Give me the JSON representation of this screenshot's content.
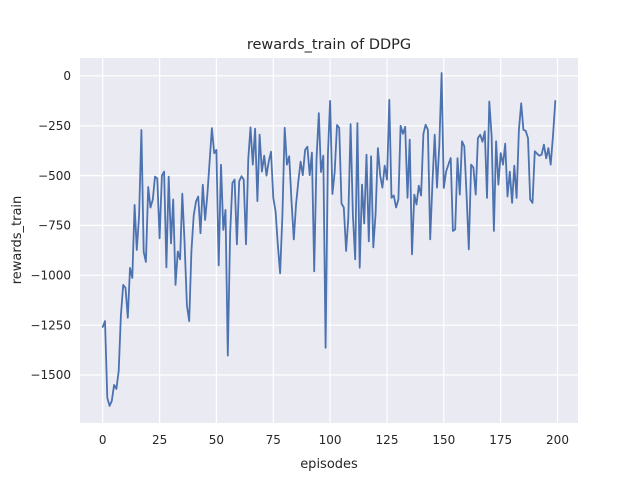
{
  "chart_data": {
    "type": "line",
    "title": "rewards_train of DDPG",
    "xlabel": "episodes",
    "ylabel": "rewards_train",
    "x_ticks": [
      0,
      25,
      50,
      75,
      100,
      125,
      150,
      175,
      200
    ],
    "x_tick_labels": [
      "0",
      "25",
      "50",
      "75",
      "100",
      "125",
      "150",
      "175",
      "200"
    ],
    "y_ticks": [
      0,
      -250,
      -500,
      -750,
      -1000,
      -1250,
      -1500
    ],
    "y_tick_labels": [
      "0",
      "−250",
      "−500",
      "−750",
      "−1000",
      "−1250",
      "−1500"
    ],
    "xlim": [
      -10,
      209
    ],
    "ylim": [
      -1741,
      90
    ],
    "grid": true,
    "legend": false,
    "style": "seaborn-darkgrid",
    "colors": {
      "line": "#4c72b0",
      "axes_background": "#eaeaf2",
      "gridline": "#ffffff",
      "text": "#262626",
      "figure_background": "#ffffff"
    },
    "series": [
      {
        "name": "rewards_train",
        "x_start": 0,
        "x_step": 1,
        "values": [
          -1259,
          -1230,
          -1615,
          -1655,
          -1630,
          -1550,
          -1570,
          -1480,
          -1200,
          -1048,
          -1063,
          -1213,
          -963,
          -1013,
          -647,
          -873,
          -700,
          -271,
          -883,
          -933,
          -557,
          -660,
          -620,
          -505,
          -515,
          -815,
          -500,
          -480,
          -960,
          -505,
          -840,
          -620,
          -1048,
          -880,
          -920,
          -590,
          -840,
          -1150,
          -1230,
          -880,
          -700,
          -630,
          -605,
          -789,
          -546,
          -722,
          -600,
          -430,
          -262,
          -388,
          -371,
          -950,
          -446,
          -772,
          -672,
          -1403,
          -795,
          -537,
          -520,
          -845,
          -528,
          -503,
          -520,
          -845,
          -415,
          -258,
          -445,
          -265,
          -628,
          -295,
          -480,
          -400,
          -500,
          -430,
          -380,
          -612,
          -680,
          -845,
          -990,
          -700,
          -260,
          -445,
          -403,
          -628,
          -820,
          -647,
          -530,
          -430,
          -498,
          -371,
          -355,
          -498,
          -385,
          -980,
          -420,
          -187,
          -482,
          -400,
          -1364,
          -396,
          -125,
          -592,
          -482,
          -246,
          -260,
          -640,
          -660,
          -878,
          -713,
          -242,
          -700,
          -920,
          -237,
          -962,
          -545,
          -740,
          -395,
          -830,
          -403,
          -860,
          -690,
          -362,
          -500,
          -560,
          -450,
          -520,
          -120,
          -612,
          -600,
          -660,
          -620,
          -250,
          -290,
          -255,
          -612,
          -320,
          -895,
          -595,
          -645,
          -550,
          -600,
          -290,
          -245,
          -270,
          -820,
          -530,
          -295,
          -560,
          -350,
          15,
          -562,
          -480,
          -445,
          -412,
          -778,
          -770,
          -412,
          -595,
          -328,
          -353,
          -600,
          -870,
          -445,
          -460,
          -595,
          -312,
          -295,
          -330,
          -278,
          -612,
          -128,
          -300,
          -778,
          -328,
          -545,
          -387,
          -445,
          -340,
          -605,
          -480,
          -637,
          -450,
          -612,
          -270,
          -137,
          -270,
          -275,
          -312,
          -620,
          -637,
          -378,
          -390,
          -400,
          -395,
          -345,
          -413,
          -362,
          -445,
          -300,
          -125
        ]
      }
    ]
  }
}
